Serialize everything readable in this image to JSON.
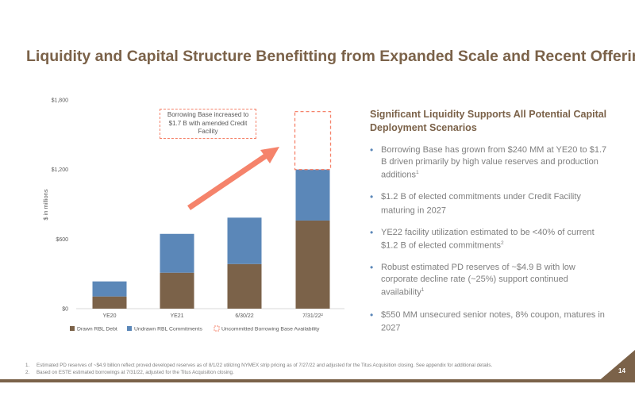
{
  "title": "Liquidity and Capital Structure Benefitting from Expanded Scale and Recent Offering",
  "page_number": "14",
  "colors": {
    "drawn": "#7B6249",
    "undrawn": "#5B87B8",
    "uncommitted_border": "#F5836B",
    "arrow": "#F5836B",
    "title": "#7B6249"
  },
  "callout": "Borrowing Base increased to $1.7 B with amended Credit Facility",
  "right_panel": {
    "heading": "Significant Liquidity Supports All Potential Capital Deployment Scenarios",
    "bullets": [
      {
        "text": "Borrowing Base has grown from $240 MM at YE20 to $1.7 B driven primarily by high value reserves and production additions",
        "sup": "1"
      },
      {
        "text": "$1.2 B of elected commitments under Credit Facility maturing in 2027",
        "sup": ""
      },
      {
        "text": "YE22 facility utilization estimated to be <40% of current $1.2 B of elected commitments",
        "sup": "2"
      },
      {
        "text": "Robust estimated PD reserves of ~$4.9 B with low corporate decline rate (~25%) support continued availability",
        "sup": "1"
      },
      {
        "text": "$550 MM unsecured senior notes, 8% coupon, matures in 2027",
        "sup": ""
      }
    ]
  },
  "footnotes": [
    {
      "num": "1.",
      "text": "Estimated PD reserves of ~$4.9 billion reflect proved developed reserves as of 8/1/22 utilizing NYMEX strip pricing as of 7/27/22 and adjusted for the Titus Acquisition closing. See appendix for additional details."
    },
    {
      "num": "2.",
      "text": "Based on ESTE estimated borrowings at 7/31/22, adjusted for the Titus Acquisition closing."
    }
  ],
  "chart_data": {
    "type": "bar",
    "stacked": true,
    "categories": [
      "YE20",
      "YE21",
      "6/30/22",
      "7/31/22²"
    ],
    "ylabel": "$ in millions",
    "ylim": [
      0,
      1800
    ],
    "yticks": [
      0,
      600,
      1200,
      1800
    ],
    "ytick_labels": [
      "$0",
      "$600",
      "$1,200",
      "$1,800"
    ],
    "series": [
      {
        "name": "Drawn RBL Debt",
        "values": [
          105,
          310,
          385,
          760
        ]
      },
      {
        "name": "Undrawn RBL Commitments",
        "values": [
          130,
          335,
          400,
          440
        ]
      },
      {
        "name": "Uncommitted Borrowing Base Availability",
        "values": [
          0,
          0,
          0,
          500
        ]
      }
    ],
    "legend_position": "bottom"
  }
}
